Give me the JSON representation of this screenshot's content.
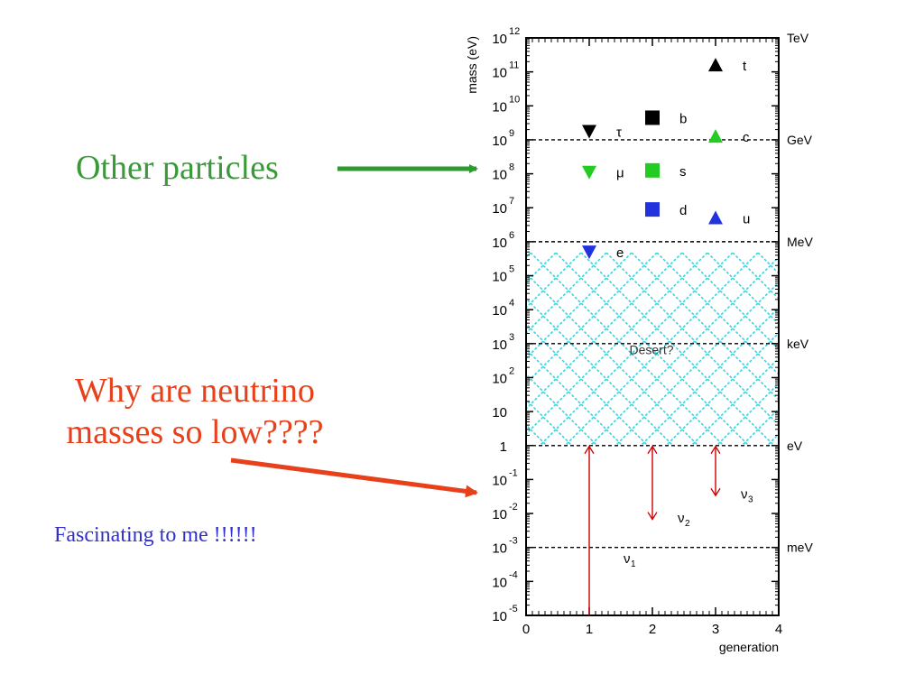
{
  "annotations": {
    "other_particles": "Other particles",
    "why_line1": "Why are neutrino",
    "why_line2": "masses so low????",
    "fascinating": "Fascinating to me !!!!!!"
  },
  "colors": {
    "other_text": "#3a9a3a",
    "why_text": "#e8401a",
    "fascinating_text": "#3030d0",
    "arrow_green": "#2e9a2e",
    "arrow_red": "#e8401a",
    "desert_hatch": "#33d6e0",
    "neutrino_line": "#cc0000",
    "gen3_marker": "#000000",
    "gen2_marker": "#22cc22",
    "gen1_marker": "#2233dd"
  },
  "chart_data": {
    "type": "scatter",
    "xlabel": "generation",
    "ylabel": "mass (eV)",
    "xlim": [
      0,
      4
    ],
    "ylim_log10": [
      -5,
      12
    ],
    "x_ticks": [
      "0",
      "1",
      "2",
      "3",
      "4"
    ],
    "y_ticks": [
      {
        "exp": 12,
        "base": "10",
        "sup": "12"
      },
      {
        "exp": 11,
        "base": "10",
        "sup": "11"
      },
      {
        "exp": 10,
        "base": "10",
        "sup": "10"
      },
      {
        "exp": 9,
        "base": "10",
        "sup": "9"
      },
      {
        "exp": 8,
        "base": "10",
        "sup": "8"
      },
      {
        "exp": 7,
        "base": "10",
        "sup": "7"
      },
      {
        "exp": 6,
        "base": "10",
        "sup": "6"
      },
      {
        "exp": 5,
        "base": "10",
        "sup": "5"
      },
      {
        "exp": 4,
        "base": "10",
        "sup": "4"
      },
      {
        "exp": 3,
        "base": "10",
        "sup": "3"
      },
      {
        "exp": 2,
        "base": "10",
        "sup": "2"
      },
      {
        "exp": 1,
        "base": "10",
        "sup": ""
      },
      {
        "exp": 0,
        "base": "1",
        "sup": ""
      },
      {
        "exp": -1,
        "base": "10",
        "sup": "-1"
      },
      {
        "exp": -2,
        "base": "10",
        "sup": "-2"
      },
      {
        "exp": -3,
        "base": "10",
        "sup": "-3"
      },
      {
        "exp": -4,
        "base": "10",
        "sup": "-4"
      },
      {
        "exp": -5,
        "base": "10",
        "sup": "-5"
      }
    ],
    "energy_levels": [
      {
        "label": "TeV",
        "log10_eV": 12,
        "dashed": false
      },
      {
        "label": "GeV",
        "log10_eV": 9,
        "dashed": true
      },
      {
        "label": "MeV",
        "log10_eV": 6,
        "dashed": true
      },
      {
        "label": "keV",
        "log10_eV": 3,
        "dashed": true
      },
      {
        "label": "eV",
        "log10_eV": 0,
        "dashed": true
      },
      {
        "label": "meV",
        "log10_eV": -3,
        "dashed": true
      }
    ],
    "desert": {
      "label": "Desert?",
      "log10_from": 0,
      "log10_to": 5.7
    },
    "particles": [
      {
        "name": "t",
        "generation": 3,
        "log10_mass": 11.2,
        "shape": "triangle-up",
        "color": "#000000"
      },
      {
        "name": "b",
        "generation": 2,
        "log10_mass": 9.65,
        "shape": "square",
        "color": "#000000"
      },
      {
        "name": "τ",
        "generation": 1,
        "log10_mass": 9.25,
        "shape": "triangle-down",
        "color": "#000000"
      },
      {
        "name": "c",
        "generation": 3,
        "log10_mass": 9.1,
        "shape": "triangle-up",
        "color": "#22cc22"
      },
      {
        "name": "μ",
        "generation": 1,
        "log10_mass": 8.05,
        "shape": "triangle-down",
        "color": "#22cc22"
      },
      {
        "name": "s",
        "generation": 2,
        "log10_mass": 8.1,
        "shape": "square",
        "color": "#22cc22"
      },
      {
        "name": "d",
        "generation": 2,
        "log10_mass": 6.95,
        "shape": "square",
        "color": "#2233dd"
      },
      {
        "name": "u",
        "generation": 3,
        "log10_mass": 6.7,
        "shape": "triangle-up",
        "color": "#2233dd"
      },
      {
        "name": "e",
        "generation": 1,
        "log10_mass": 5.7,
        "shape": "triangle-down",
        "color": "#2233dd"
      }
    ],
    "neutrinos": [
      {
        "name": "ν",
        "sub": "1",
        "generation": 1,
        "log10_upper": 0,
        "log10_lower": -5,
        "label_log10": -3.3
      },
      {
        "name": "ν",
        "sub": "2",
        "generation": 2,
        "log10_upper": 0,
        "log10_lower": -2.2,
        "label_log10": -2.1
      },
      {
        "name": "ν",
        "sub": "3",
        "generation": 3,
        "log10_upper": 0,
        "log10_lower": -1.5,
        "label_log10": -1.4
      }
    ]
  }
}
